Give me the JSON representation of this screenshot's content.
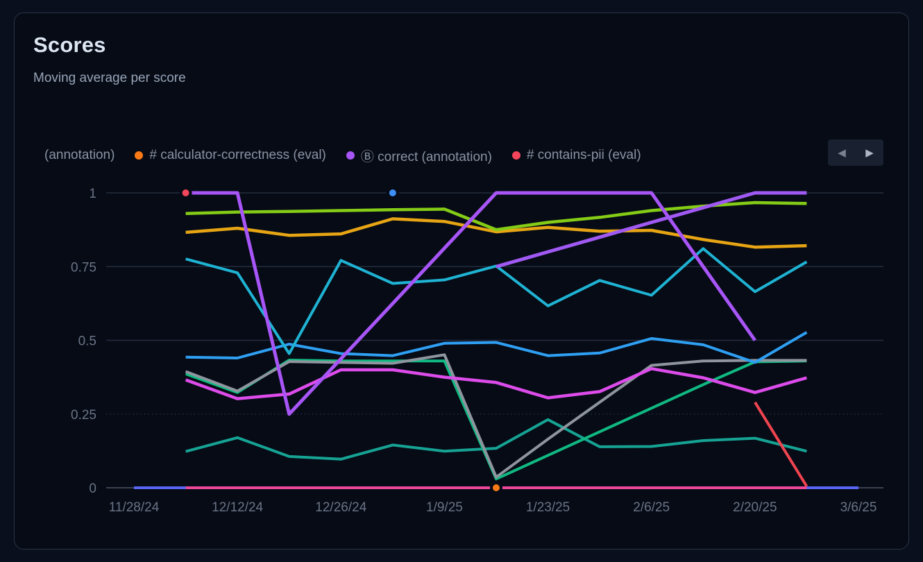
{
  "panel": {
    "title": "Scores",
    "subtitle": "Moving average per score"
  },
  "legend": {
    "items": [
      {
        "label": "(annotation)",
        "color": null
      },
      {
        "label": "# calculator-correctness (eval)",
        "color": "#f97a16"
      },
      {
        "label": "Ⓑ correct (annotation)",
        "color": "#a855f7"
      },
      {
        "label": "# contains-pii (eval)",
        "color": "#f4455a"
      }
    ],
    "nav": {
      "prev": "◀",
      "next": "▶"
    }
  },
  "chart_data": {
    "type": "line",
    "title": "Scores",
    "subtitle": "Moving average per score",
    "grid": "horizontal",
    "legend_position": "top",
    "ylim": [
      0,
      1
    ],
    "y_ticks": [
      0,
      0.25,
      0.5,
      0.75,
      1
    ],
    "y_tick_labels": [
      "0",
      "0.25",
      "0.5",
      "0.75",
      "1"
    ],
    "x_dates": [
      "11/28/24",
      "12/5/24",
      "12/12/24",
      "12/19/24",
      "12/26/24",
      "1/2/25",
      "1/9/25",
      "1/16/25",
      "1/23/25",
      "1/30/25",
      "2/6/25",
      "2/13/25",
      "2/20/25",
      "2/27/25",
      "3/6/25"
    ],
    "x_tick_indices": [
      0,
      2,
      4,
      6,
      8,
      10,
      12,
      14
    ],
    "x_tick_labels": [
      "11/28/24",
      "12/12/24",
      "12/26/24",
      "1/9/25",
      "1/23/25",
      "2/6/25",
      "2/20/25",
      "3/6/25"
    ],
    "axis_color": "#39414f",
    "grid_color": "#242c3d",
    "label_color": "#6b7486",
    "series": [
      {
        "name": "zero-baseline-indigo",
        "color": "#5865f2",
        "width": 4,
        "start": 0,
        "values": [
          0,
          0,
          0,
          0,
          0,
          0,
          0,
          0,
          0,
          0,
          0,
          0,
          0,
          0,
          0
        ]
      },
      {
        "name": "zero-baseline-pink",
        "color": "#ec4899",
        "width": 4,
        "start": 1,
        "values": [
          0,
          0,
          0,
          0,
          0,
          0,
          0,
          0,
          0,
          0,
          0,
          0,
          0
        ]
      },
      {
        "name": "teal",
        "color": "#16a394",
        "width": 4,
        "start": 1,
        "values": [
          0.123,
          0.17,
          0.106,
          0.097,
          0.145,
          0.124,
          0.134,
          0.231,
          0.139,
          0.14,
          0.16,
          0.168,
          0.124
        ]
      },
      {
        "name": "emerald",
        "color": "#10b981",
        "width": 4,
        "start": 1,
        "values": [
          0.386,
          0.323,
          0.433,
          0.43,
          0.43,
          0.43,
          0.03,
          0.11,
          0.19,
          0.27,
          0.35,
          0.427,
          0.43
        ]
      },
      {
        "name": "gray",
        "color": "#8f959e",
        "width": 4,
        "start": 1,
        "values": [
          0.394,
          0.328,
          0.428,
          0.425,
          0.422,
          0.451,
          0.036,
          0.165,
          0.29,
          0.415,
          0.43,
          0.432,
          0.432
        ]
      },
      {
        "name": "magenta",
        "color": "#dd4cea",
        "width": 4.5,
        "start": 1,
        "values": [
          0.366,
          0.302,
          0.318,
          0.4,
          0.4,
          0.375,
          0.357,
          0.305,
          0.326,
          0.404,
          0.373,
          0.323,
          0.373
        ]
      },
      {
        "name": "blue",
        "color": "#2f9ff2",
        "width": 4,
        "start": 1,
        "values": [
          0.443,
          0.44,
          0.487,
          0.455,
          0.448,
          0.49,
          0.493,
          0.448,
          0.457,
          0.506,
          0.485,
          0.425,
          0.527
        ]
      },
      {
        "name": "cyan",
        "color": "#1fb3d3",
        "width": 4,
        "start": 1,
        "values": [
          0.776,
          0.729,
          0.455,
          0.771,
          0.693,
          0.705,
          0.752,
          0.617,
          0.703,
          0.653,
          0.811,
          0.665,
          0.766
        ]
      },
      {
        "name": "amber",
        "color": "#e7a514",
        "width": 4.5,
        "start": 1,
        "values": [
          0.866,
          0.88,
          0.856,
          0.861,
          0.912,
          0.903,
          0.868,
          0.883,
          0.87,
          0.873,
          0.842,
          0.816,
          0.821
        ]
      },
      {
        "name": "lime",
        "color": "#84cc16",
        "width": 4.5,
        "start": 1,
        "values": [
          0.93,
          0.935,
          0.937,
          0.94,
          0.943,
          0.945,
          0.875,
          0.9,
          0.917,
          0.94,
          0.955,
          0.967,
          0.964
        ]
      },
      {
        "name": "violet-main",
        "color": "#a855f7",
        "width": 5,
        "start": 1,
        "values": [
          1,
          1,
          0.25,
          0.4375,
          0.625,
          0.8125,
          1,
          1,
          1,
          1,
          0.75,
          0.5
        ]
      },
      {
        "name": "violet-rising",
        "color": "#a059f2",
        "width": 5,
        "start": 7,
        "values": [
          0.75,
          0.8,
          0.85,
          0.9,
          0.95,
          1.0,
          1.0
        ]
      },
      {
        "name": "red",
        "color": "#ef4450",
        "width": 4,
        "start": 12,
        "values": [
          0.29,
          0.005
        ]
      }
    ],
    "points": [
      {
        "name": "red-point",
        "x_index": 1,
        "value": 1,
        "color": "#f4455a"
      },
      {
        "name": "blue-point",
        "x_index": 5,
        "value": 1,
        "color": "#3e8ef7"
      },
      {
        "name": "orange-point",
        "x_index": 7,
        "value": 0,
        "color": "#f97a16"
      }
    ]
  }
}
